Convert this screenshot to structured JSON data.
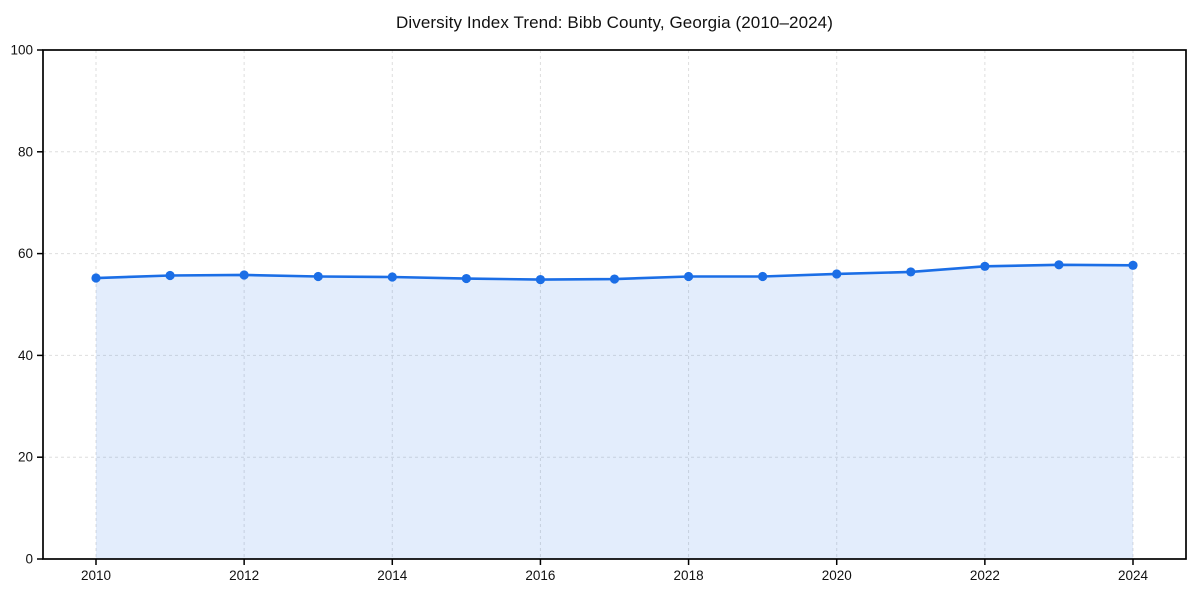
{
  "chart_data": {
    "type": "area",
    "title": "Diversity Index Trend: Bibb County, Georgia (2010–2024)",
    "xlabel": "",
    "ylabel": "",
    "x": [
      2010,
      2011,
      2012,
      2013,
      2014,
      2015,
      2016,
      2017,
      2018,
      2019,
      2020,
      2021,
      2022,
      2023,
      2024
    ],
    "values": [
      55.2,
      55.7,
      55.8,
      55.5,
      55.4,
      55.1,
      54.9,
      55.0,
      55.5,
      55.5,
      56.0,
      56.4,
      57.5,
      57.8,
      57.7
    ],
    "ylim": [
      0,
      100
    ],
    "yticks": [
      0,
      20,
      40,
      60,
      80,
      100
    ],
    "xticks": [
      2010,
      2012,
      2014,
      2016,
      2018,
      2020,
      2022,
      2024
    ],
    "grid": true,
    "legend": false,
    "markers": true,
    "colors": {
      "line": "#1b6ee6",
      "marker": "#1b6ee6",
      "fill": "rgba(27, 110, 230, 0.12)",
      "grid": "#dedede",
      "axis": "#000000",
      "tick_text": "#111111",
      "background": "#ffffff"
    }
  }
}
